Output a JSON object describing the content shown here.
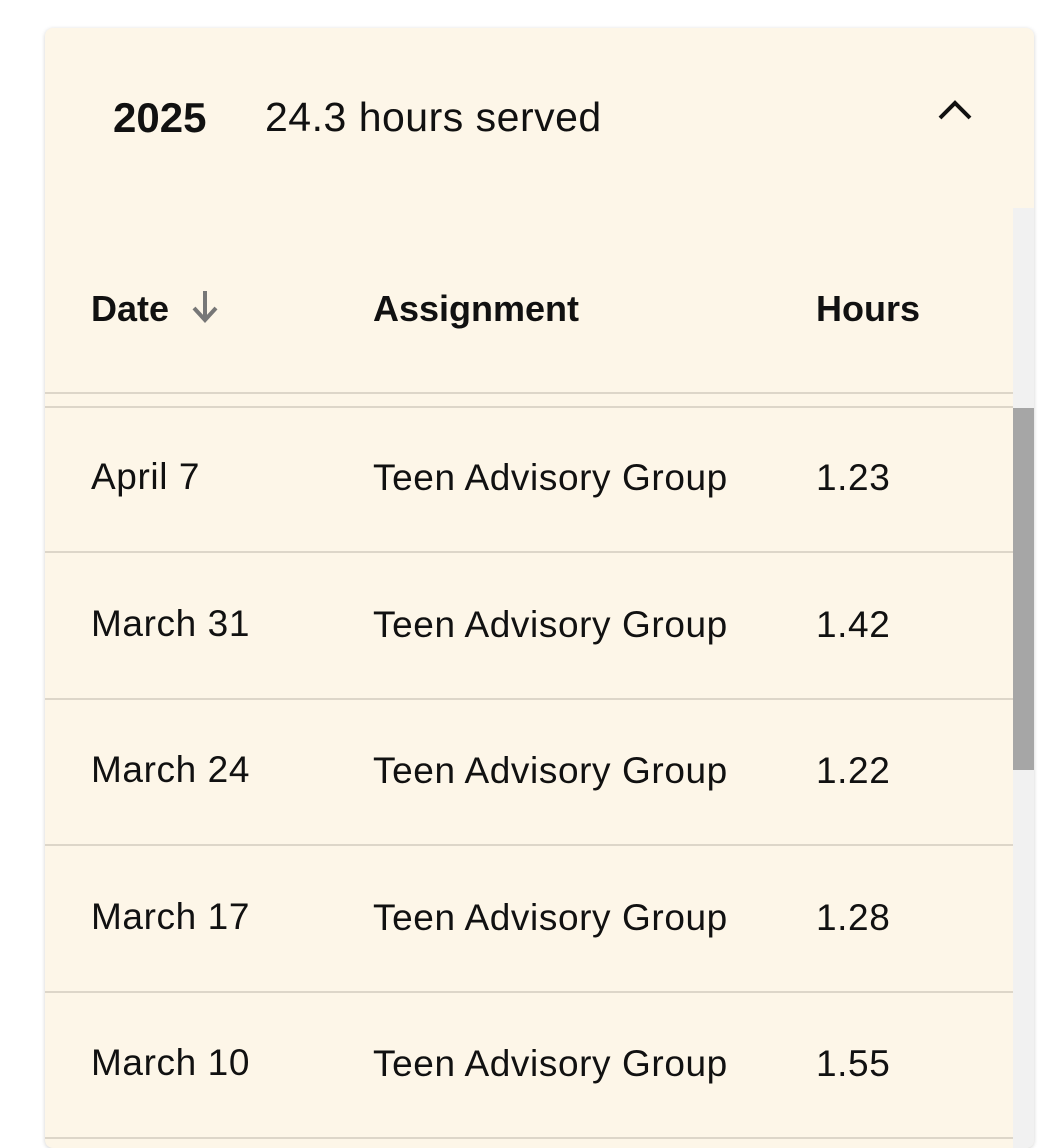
{
  "section": {
    "year": "2025",
    "summary": "24.3 hours served",
    "toggle_icon": "chevron-up-icon"
  },
  "table": {
    "columns": [
      "Date",
      "Assignment",
      "Hours"
    ],
    "sort_icon": "arrow-down-icon",
    "rows": [
      {
        "date": "April 7",
        "assignment": "Teen Advisory Group",
        "hours": "1.23"
      },
      {
        "date": "March 31",
        "assignment": "Teen Advisory Group",
        "hours": "1.42"
      },
      {
        "date": "March 24",
        "assignment": "Teen Advisory Group",
        "hours": "1.22"
      },
      {
        "date": "March 17",
        "assignment": "Teen Advisory Group",
        "hours": "1.28"
      },
      {
        "date": "March 10",
        "assignment": "Teen Advisory Group",
        "hours": "1.55"
      }
    ]
  }
}
